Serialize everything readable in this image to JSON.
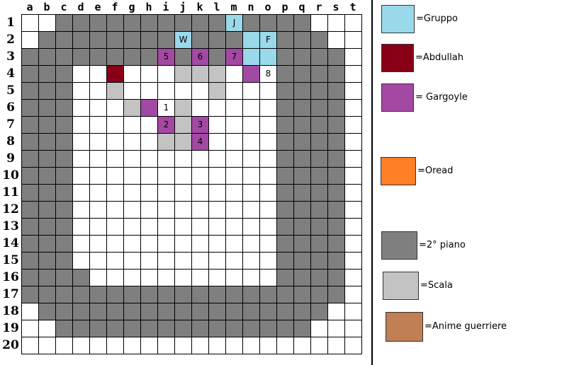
{
  "palette": {
    "gruppo": "#99d9ea",
    "abdullah": "#880015",
    "gargoyle": "#a349a4",
    "oread": "#ff7f27",
    "piano2": "#7f7f7f",
    "scala": "#c3c3c3",
    "anime": "#c07f55",
    "floor": "#ffffff"
  },
  "grid": {
    "columns": [
      "a",
      "b",
      "c",
      "d",
      "e",
      "f",
      "g",
      "h",
      "i",
      "j",
      "k",
      "l",
      "m",
      "n",
      "o",
      "p",
      "q",
      "r",
      "s",
      "t"
    ],
    "rows": [
      "1",
      "2",
      "3",
      "4",
      "5",
      "6",
      "7",
      "8",
      "9",
      "10",
      "11",
      "12",
      "13",
      "14",
      "15",
      "16",
      "17",
      "18",
      "19",
      "20"
    ],
    "map": [
      "..GGGGGGGGGGwGGGG...",
      ".GGGGGGGGwGGGwwGGG..",
      "GGGGGGGGmGmGmwwGGGG.",
      "GGG..r...Sss.m.GGGG.",
      "GGG..S.....S...GGGG.",
      "GGG...Sm.S.....GGGG.",
      "GGG.....mSm....GGGG.",
      "GGG.....SSm....GGGG.",
      "GGG............GGGG.",
      "GGG............GGGG.",
      "GGG............GGGG.",
      "GGG............GGGG.",
      "GGG............GGGG.",
      "GGG............GGGG.",
      "GGG............GGGG.",
      "GGGG...........GGGG.",
      "GGGGGGGGGGGGGGGGGGG.",
      ".GGGGGGGGGGGGGGGGG..",
      "..GGGGGGGGGGGGGGG...",
      "...................."
    ],
    "tokens": [
      {
        "label": "J",
        "col": 12,
        "row": 0
      },
      {
        "label": "W",
        "col": 9,
        "row": 1
      },
      {
        "label": "F",
        "col": 14,
        "row": 1
      },
      {
        "label": "5",
        "col": 8,
        "row": 2
      },
      {
        "label": "6",
        "col": 10,
        "row": 2
      },
      {
        "label": "7",
        "col": 12,
        "row": 2
      },
      {
        "label": "8",
        "col": 14,
        "row": 3
      },
      {
        "label": "1",
        "col": 8,
        "row": 5
      },
      {
        "label": "2",
        "col": 8,
        "row": 6
      },
      {
        "label": "3",
        "col": 10,
        "row": 6
      },
      {
        "label": "4",
        "col": 10,
        "row": 7
      }
    ]
  },
  "legend": [
    {
      "key": "gruppo",
      "label": "=Gruppo",
      "color": "#99d9ea"
    },
    {
      "key": "abdullah",
      "label": "=Abdullah",
      "color": "#880015"
    },
    {
      "key": "gargoyle",
      "label": "= Gargoyle",
      "color": "#a349a4"
    },
    {
      "key": "oread",
      "label": "=Oread",
      "color": "#ff7f27"
    },
    {
      "key": "piano2",
      "label": "=2° piano",
      "color": "#7f7f7f"
    },
    {
      "key": "scala",
      "label": "=Scala",
      "color": "#c3c3c3"
    },
    {
      "key": "anime",
      "label": "=Anime guerriere",
      "color": "#c07f55"
    }
  ]
}
